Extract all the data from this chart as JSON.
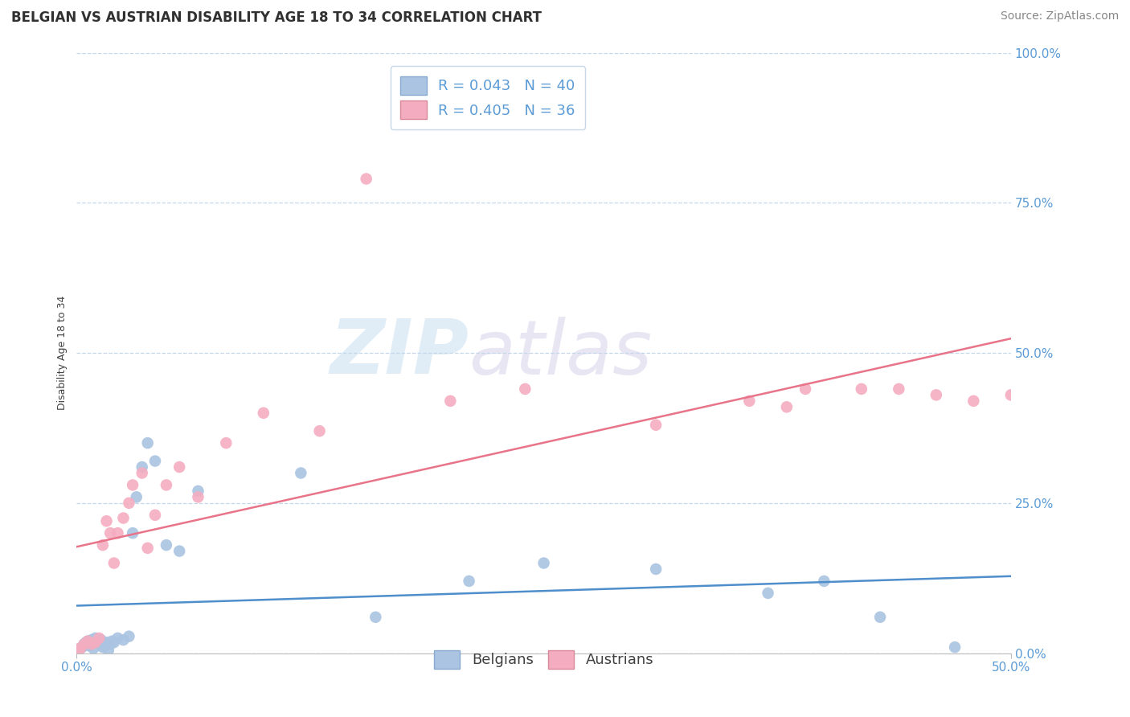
{
  "title": "BELGIAN VS AUSTRIAN DISABILITY AGE 18 TO 34 CORRELATION CHART",
  "source_text": "Source: ZipAtlas.com",
  "ylabel": "Disability Age 18 to 34",
  "xlim": [
    0.0,
    0.5
  ],
  "ylim": [
    0.0,
    1.0
  ],
  "ytick_positions": [
    0.0,
    0.25,
    0.5,
    0.75,
    1.0
  ],
  "ytick_labels": [
    "0.0%",
    "25.0%",
    "50.0%",
    "75.0%",
    "100.0%"
  ],
  "xtick_positions": [
    0.0,
    0.5
  ],
  "xtick_labels": [
    "0.0%",
    "50.0%"
  ],
  "belgian_color": "#aac4e2",
  "austrian_color": "#f4adc0",
  "trendline_belgian_color": "#4e8ecb",
  "trendline_austrian_color": "#e8748a",
  "watermark_zip": "ZIP",
  "watermark_atlas": "atlas",
  "title_fontsize": 12,
  "axis_label_fontsize": 9,
  "tick_fontsize": 11,
  "legend_fontsize": 13,
  "source_fontsize": 10,
  "belgians_x": [
    0.001,
    0.002,
    0.003,
    0.004,
    0.005,
    0.006,
    0.007,
    0.008,
    0.009,
    0.01,
    0.011,
    0.012,
    0.013,
    0.014,
    0.015,
    0.016,
    0.017,
    0.018,
    0.019,
    0.02,
    0.022,
    0.025,
    0.028,
    0.03,
    0.032,
    0.035,
    0.038,
    0.042,
    0.048,
    0.055,
    0.065,
    0.12,
    0.16,
    0.21,
    0.25,
    0.31,
    0.37,
    0.4,
    0.43,
    0.47
  ],
  "belgians_y": [
    0.005,
    0.008,
    0.01,
    0.015,
    0.018,
    0.02,
    0.012,
    0.022,
    0.008,
    0.025,
    0.018,
    0.015,
    0.022,
    0.01,
    0.012,
    0.018,
    0.005,
    0.015,
    0.02,
    0.018,
    0.025,
    0.022,
    0.028,
    0.2,
    0.26,
    0.31,
    0.35,
    0.32,
    0.18,
    0.17,
    0.27,
    0.3,
    0.06,
    0.12,
    0.15,
    0.14,
    0.1,
    0.12,
    0.06,
    0.01
  ],
  "austrians_x": [
    0.001,
    0.002,
    0.004,
    0.006,
    0.008,
    0.01,
    0.012,
    0.014,
    0.016,
    0.018,
    0.02,
    0.022,
    0.025,
    0.028,
    0.03,
    0.035,
    0.038,
    0.042,
    0.048,
    0.055,
    0.065,
    0.08,
    0.1,
    0.13,
    0.155,
    0.2,
    0.24,
    0.31,
    0.36,
    0.38,
    0.39,
    0.42,
    0.44,
    0.46,
    0.48,
    0.5
  ],
  "austrians_y": [
    0.005,
    0.008,
    0.015,
    0.02,
    0.015,
    0.018,
    0.025,
    0.18,
    0.22,
    0.2,
    0.15,
    0.2,
    0.225,
    0.25,
    0.28,
    0.3,
    0.175,
    0.23,
    0.28,
    0.31,
    0.26,
    0.35,
    0.4,
    0.37,
    0.79,
    0.42,
    0.44,
    0.38,
    0.42,
    0.41,
    0.44,
    0.44,
    0.44,
    0.43,
    0.42,
    0.43
  ]
}
